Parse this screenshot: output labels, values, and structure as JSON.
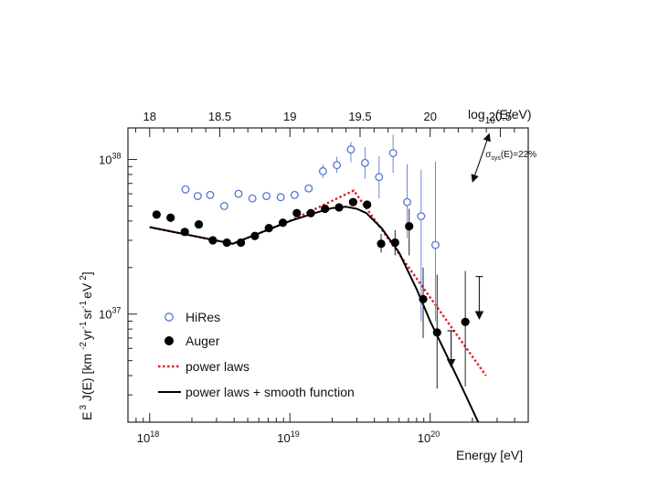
{
  "chart_data": {
    "type": "scatter",
    "title": "",
    "xlabel": "Energy [eV]",
    "ylabel": "E 3 J(E) [km -2 yr-1 sr-1 eV 2]",
    "ylabel_parts": {
      "e": "E",
      "e_exp": "3",
      "je": "J(E) [km",
      "u1": "-2",
      "yr": "yr",
      "u2": "-1",
      "sr": "sr",
      "u3": "-1",
      "ev": "eV",
      "u4": "2",
      "close": "]"
    },
    "top_axis_label": "log10(E/eV)",
    "top_axis_label_parts": {
      "log": "log",
      "sub": "10",
      "rest": "(E/eV)"
    },
    "xscale": "log",
    "yscale": "log",
    "xlim": [
      7e+17,
      5e+20
    ],
    "ylim": [
      2e+36,
      1.6e+38
    ],
    "x_ticks": [
      {
        "value": 1e+18,
        "base": "10",
        "exp": "18"
      },
      {
        "value": 1e+19,
        "base": "10",
        "exp": "19"
      },
      {
        "value": 1e+20,
        "base": "10",
        "exp": "20"
      }
    ],
    "y_ticks": [
      {
        "value": 1e+37,
        "base": "10",
        "exp": "37"
      },
      {
        "value": 1e+38,
        "base": "10",
        "exp": "38"
      }
    ],
    "top_ticks": [
      {
        "value": 18,
        "label": "18"
      },
      {
        "value": 18.5,
        "label": "18.5"
      },
      {
        "value": 19,
        "label": "19"
      },
      {
        "value": 19.5,
        "label": "19.5"
      },
      {
        "value": 20,
        "label": "20"
      },
      {
        "value": 20.5,
        "label": "20.5"
      }
    ],
    "series": [
      {
        "name": "HiRes",
        "marker": "open-circle",
        "color": "#5577cc",
        "points": [
          {
            "x": 1.8e+18,
            "y": 6.4e+37
          },
          {
            "x": 2.2e+18,
            "y": 5.8e+37
          },
          {
            "x": 2.7e+18,
            "y": 5.9e+37
          },
          {
            "x": 3.4e+18,
            "y": 5e+37
          },
          {
            "x": 4.3e+18,
            "y": 6e+37
          },
          {
            "x": 5.4e+18,
            "y": 5.6e+37
          },
          {
            "x": 6.8e+18,
            "y": 5.8e+37
          },
          {
            "x": 8.6e+18,
            "y": 5.7e+37
          },
          {
            "x": 1.08e+19,
            "y": 5.9e+37
          },
          {
            "x": 1.36e+19,
            "y": 6.5e+37
          },
          {
            "x": 1.72e+19,
            "y": 8.4e+37,
            "err": [
              7.6e+37,
              9.3e+37
            ]
          },
          {
            "x": 2.16e+19,
            "y": 9.2e+37,
            "err": [
              8.2e+37,
              1.04e+38
            ]
          },
          {
            "x": 2.72e+19,
            "y": 1.16e+38,
            "err": [
              9.6e+37,
              1.3e+38
            ]
          },
          {
            "x": 3.43e+19,
            "y": 9.5e+37,
            "err": [
              7.5e+37,
              1.2e+38
            ]
          },
          {
            "x": 4.32e+19,
            "y": 7.7e+37,
            "err": [
              5.6e+37,
              1.05e+38
            ]
          },
          {
            "x": 5.44e+19,
            "y": 1.1e+38,
            "err": [
              8.2e+37,
              1.45e+38
            ]
          },
          {
            "x": 6.85e+19,
            "y": 5.3e+37,
            "err": [
              3.1e+37,
              9.3e+37
            ]
          },
          {
            "x": 8.62e+19,
            "y": 4.3e+37,
            "err": [
              9e+36,
              8.6e+37
            ]
          },
          {
            "x": 1.09e+20,
            "y": 2.8e+37,
            "err": [
              9e+36,
              9.7e+37
            ]
          }
        ]
      },
      {
        "name": "Auger",
        "marker": "filled-circle",
        "color": "#000000",
        "points": [
          {
            "x": 1.12e+18,
            "y": 4.4e+37
          },
          {
            "x": 1.41e+18,
            "y": 4.2e+37
          },
          {
            "x": 1.78e+18,
            "y": 3.4e+37
          },
          {
            "x": 2.24e+18,
            "y": 3.8e+37
          },
          {
            "x": 2.82e+18,
            "y": 3e+37
          },
          {
            "x": 3.55e+18,
            "y": 2.9e+37
          },
          {
            "x": 4.47e+18,
            "y": 2.9e+37
          },
          {
            "x": 5.62e+18,
            "y": 3.2e+37
          },
          {
            "x": 7.08e+18,
            "y": 3.6e+37
          },
          {
            "x": 8.91e+18,
            "y": 3.9e+37
          },
          {
            "x": 1.12e+19,
            "y": 4.5e+37
          },
          {
            "x": 1.41e+19,
            "y": 4.5e+37
          },
          {
            "x": 1.78e+19,
            "y": 4.8e+37
          },
          {
            "x": 2.24e+19,
            "y": 4.9e+37
          },
          {
            "x": 2.82e+19,
            "y": 5.3e+37
          },
          {
            "x": 3.55e+19,
            "y": 5.1e+37
          },
          {
            "x": 4.47e+19,
            "y": 2.85e+37,
            "err": [
              2.5e+37,
              3.3e+37
            ]
          },
          {
            "x": 5.62e+19,
            "y": 2.9e+37,
            "err": [
              2.4e+37,
              3.5e+37
            ]
          },
          {
            "x": 7.08e+19,
            "y": 3.7e+37,
            "err": [
              2.4e+37,
              4.8e+37
            ]
          },
          {
            "x": 8.91e+19,
            "y": 1.25e+37,
            "err": [
              7e+36,
              2e+37
            ]
          },
          {
            "x": 1.12e+20,
            "y": 7.6e+36,
            "err": [
              3.3e+36,
              1.8e+37
            ]
          },
          {
            "x": 1.78e+20,
            "y": 8.9e+36,
            "err": [
              3.4e+36,
              1.9e+37
            ]
          }
        ],
        "upper_limits": [
          {
            "x": 1.41e+20,
            "y": 7.8e+36,
            "y_end": 4.8e+36
          },
          {
            "x": 2.24e+20,
            "y": 1.75e+37,
            "y_end": 9.8e+36
          }
        ]
      },
      {
        "name": "power laws",
        "type": "line",
        "style": "dotted",
        "color": "#e0202a",
        "points": [
          {
            "x": 1e+18,
            "y": 3.65e+37
          },
          {
            "x": 3.9e+18,
            "y": 2.85e+37
          },
          {
            "x": 1e+19,
            "y": 4e+37
          },
          {
            "x": 2.85e+19,
            "y": 6.3e+37
          },
          {
            "x": 2.5e+20,
            "y": 4e+36
          }
        ]
      },
      {
        "name": "power laws + smooth function",
        "type": "line",
        "style": "solid",
        "color": "#000000",
        "points": [
          {
            "x": 1e+18,
            "y": 3.65e+37
          },
          {
            "x": 3.9e+18,
            "y": 2.85e+37
          },
          {
            "x": 1e+19,
            "y": 4e+37
          },
          {
            "x": 1.5e+19,
            "y": 4.5e+37
          },
          {
            "x": 2e+19,
            "y": 4.85e+37
          },
          {
            "x": 2.5e+19,
            "y": 4.95e+37
          },
          {
            "x": 3e+19,
            "y": 4.8e+37
          },
          {
            "x": 3.5e+19,
            "y": 4.5e+37
          },
          {
            "x": 4.5e+19,
            "y": 3.6e+37
          },
          {
            "x": 6e+19,
            "y": 2.5e+37
          },
          {
            "x": 8e+19,
            "y": 1.45e+37
          },
          {
            "x": 1e+20,
            "y": 9e+36
          },
          {
            "x": 1.3e+20,
            "y": 5.5e+36
          },
          {
            "x": 1.7e+20,
            "y": 3.3e+36
          },
          {
            "x": 2.2e+20,
            "y": 2e+36
          }
        ]
      }
    ],
    "annotation": {
      "parts": {
        "sigma": "σ",
        "sub": "sys",
        "rest": "(E)=22%"
      },
      "arrow_x": 2.3e+20,
      "arrow_y": [
        1.4e+38,
        7.5e+37
      ]
    },
    "legend": {
      "position": "bottom-left",
      "entries": [
        "HiRes",
        "Auger",
        "power laws",
        "power laws + smooth function"
      ]
    }
  }
}
